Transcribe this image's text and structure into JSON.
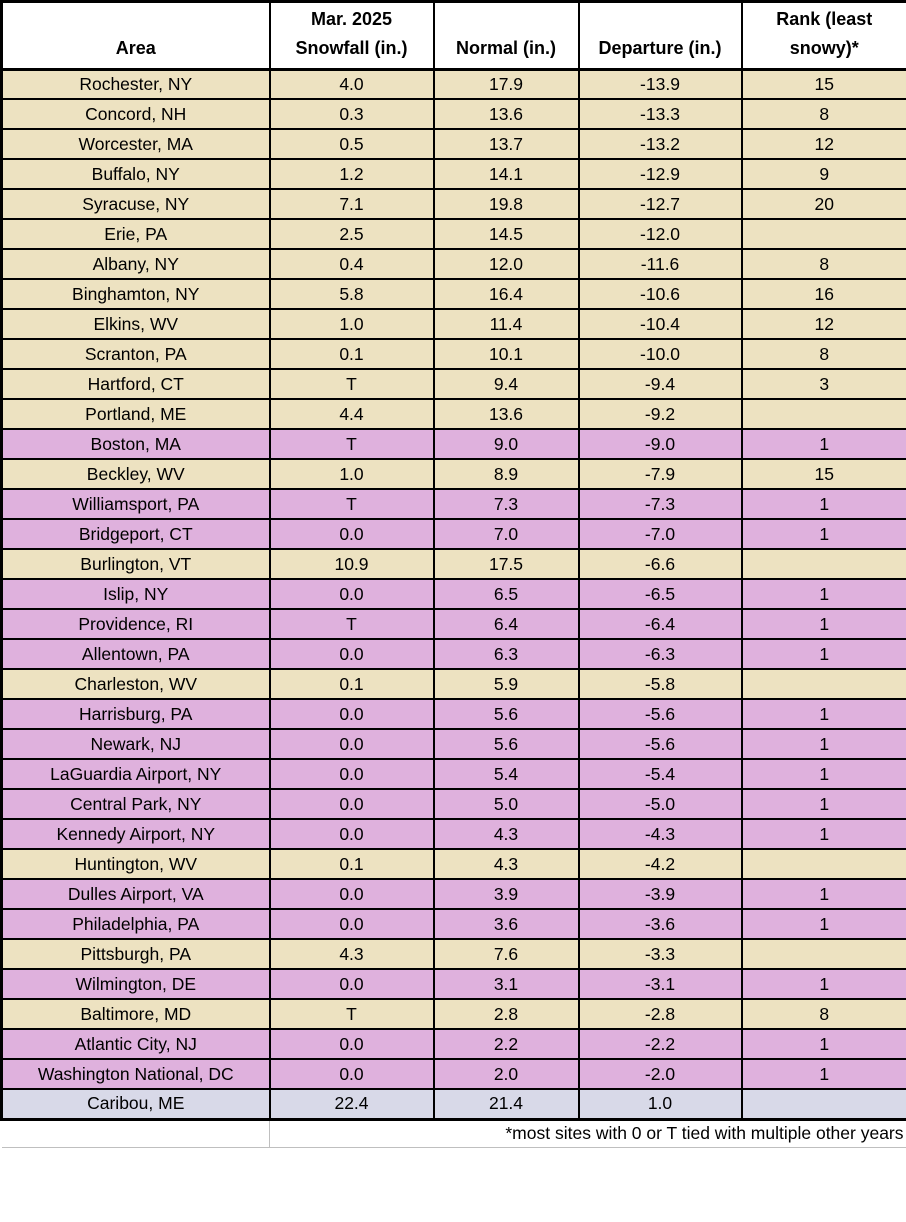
{
  "chart_data": {
    "type": "table",
    "title": "March 2025 snowfall vs. normal by area",
    "columns": [
      "Area",
      "Mar. 2025 Snowfall (in.)",
      "Normal (in.)",
      "Departure (in.)",
      "Rank (least snowy)*"
    ],
    "rows": [
      {
        "area": "Rochester, NY",
        "snowfall": "4.0",
        "normal": "17.9",
        "departure": "-13.9",
        "rank": "15",
        "tone": "tan"
      },
      {
        "area": "Concord, NH",
        "snowfall": "0.3",
        "normal": "13.6",
        "departure": "-13.3",
        "rank": "8",
        "tone": "tan"
      },
      {
        "area": "Worcester, MA",
        "snowfall": "0.5",
        "normal": "13.7",
        "departure": "-13.2",
        "rank": "12",
        "tone": "tan"
      },
      {
        "area": "Buffalo, NY",
        "snowfall": "1.2",
        "normal": "14.1",
        "departure": "-12.9",
        "rank": "9",
        "tone": "tan"
      },
      {
        "area": "Syracuse, NY",
        "snowfall": "7.1",
        "normal": "19.8",
        "departure": "-12.7",
        "rank": "20",
        "tone": "tan"
      },
      {
        "area": "Erie, PA",
        "snowfall": "2.5",
        "normal": "14.5",
        "departure": "-12.0",
        "rank": "",
        "tone": "tan"
      },
      {
        "area": "Albany, NY",
        "snowfall": "0.4",
        "normal": "12.0",
        "departure": "-11.6",
        "rank": "8",
        "tone": "tan"
      },
      {
        "area": "Binghamton, NY",
        "snowfall": "5.8",
        "normal": "16.4",
        "departure": "-10.6",
        "rank": "16",
        "tone": "tan"
      },
      {
        "area": "Elkins, WV",
        "snowfall": "1.0",
        "normal": "11.4",
        "departure": "-10.4",
        "rank": "12",
        "tone": "tan"
      },
      {
        "area": "Scranton, PA",
        "snowfall": "0.1",
        "normal": "10.1",
        "departure": "-10.0",
        "rank": "8",
        "tone": "tan"
      },
      {
        "area": "Hartford, CT",
        "snowfall": "T",
        "normal": "9.4",
        "departure": "-9.4",
        "rank": "3",
        "tone": "tan"
      },
      {
        "area": "Portland, ME",
        "snowfall": "4.4",
        "normal": "13.6",
        "departure": "-9.2",
        "rank": "",
        "tone": "tan"
      },
      {
        "area": "Boston, MA",
        "snowfall": "T",
        "normal": "9.0",
        "departure": "-9.0",
        "rank": "1",
        "tone": "pink"
      },
      {
        "area": "Beckley, WV",
        "snowfall": "1.0",
        "normal": "8.9",
        "departure": "-7.9",
        "rank": "15",
        "tone": "tan"
      },
      {
        "area": "Williamsport, PA",
        "snowfall": "T",
        "normal": "7.3",
        "departure": "-7.3",
        "rank": "1",
        "tone": "pink"
      },
      {
        "area": "Bridgeport, CT",
        "snowfall": "0.0",
        "normal": "7.0",
        "departure": "-7.0",
        "rank": "1",
        "tone": "pink"
      },
      {
        "area": "Burlington, VT",
        "snowfall": "10.9",
        "normal": "17.5",
        "departure": "-6.6",
        "rank": "",
        "tone": "tan"
      },
      {
        "area": "Islip, NY",
        "snowfall": "0.0",
        "normal": "6.5",
        "departure": "-6.5",
        "rank": "1",
        "tone": "pink"
      },
      {
        "area": "Providence, RI",
        "snowfall": "T",
        "normal": "6.4",
        "departure": "-6.4",
        "rank": "1",
        "tone": "pink"
      },
      {
        "area": "Allentown, PA",
        "snowfall": "0.0",
        "normal": "6.3",
        "departure": "-6.3",
        "rank": "1",
        "tone": "pink"
      },
      {
        "area": "Charleston, WV",
        "snowfall": "0.1",
        "normal": "5.9",
        "departure": "-5.8",
        "rank": "",
        "tone": "tan"
      },
      {
        "area": "Harrisburg, PA",
        "snowfall": "0.0",
        "normal": "5.6",
        "departure": "-5.6",
        "rank": "1",
        "tone": "pink"
      },
      {
        "area": "Newark, NJ",
        "snowfall": "0.0",
        "normal": "5.6",
        "departure": "-5.6",
        "rank": "1",
        "tone": "pink"
      },
      {
        "area": "LaGuardia Airport, NY",
        "snowfall": "0.0",
        "normal": "5.4",
        "departure": "-5.4",
        "rank": "1",
        "tone": "pink"
      },
      {
        "area": "Central Park, NY",
        "snowfall": "0.0",
        "normal": "5.0",
        "departure": "-5.0",
        "rank": "1",
        "tone": "pink"
      },
      {
        "area": "Kennedy Airport, NY",
        "snowfall": "0.0",
        "normal": "4.3",
        "departure": "-4.3",
        "rank": "1",
        "tone": "pink"
      },
      {
        "area": "Huntington, WV",
        "snowfall": "0.1",
        "normal": "4.3",
        "departure": "-4.2",
        "rank": "",
        "tone": "tan"
      },
      {
        "area": "Dulles Airport, VA",
        "snowfall": "0.0",
        "normal": "3.9",
        "departure": "-3.9",
        "rank": "1",
        "tone": "pink"
      },
      {
        "area": "Philadelphia, PA",
        "snowfall": "0.0",
        "normal": "3.6",
        "departure": "-3.6",
        "rank": "1",
        "tone": "pink"
      },
      {
        "area": "Pittsburgh, PA",
        "snowfall": "4.3",
        "normal": "7.6",
        "departure": "-3.3",
        "rank": "",
        "tone": "tan"
      },
      {
        "area": "Wilmington, DE",
        "snowfall": "0.0",
        "normal": "3.1",
        "departure": "-3.1",
        "rank": "1",
        "tone": "pink"
      },
      {
        "area": "Baltimore, MD",
        "snowfall": "T",
        "normal": "2.8",
        "departure": "-2.8",
        "rank": "8",
        "tone": "tan"
      },
      {
        "area": "Atlantic City, NJ",
        "snowfall": "0.0",
        "normal": "2.2",
        "departure": "-2.2",
        "rank": "1",
        "tone": "pink"
      },
      {
        "area": "Washington National, DC",
        "snowfall": "0.0",
        "normal": "2.0",
        "departure": "-2.0",
        "rank": "1",
        "tone": "pink"
      },
      {
        "area": "Caribou, ME",
        "snowfall": "22.4",
        "normal": "21.4",
        "departure": "1.0",
        "rank": "",
        "tone": "lavender"
      }
    ],
    "footnote": "*most sites with 0 or T tied with multiple other years"
  },
  "header": {
    "area": "Area",
    "snowfall_line1": "Mar. 2025",
    "snowfall_line2": "Snowfall (in.)",
    "normal": "Normal (in.)",
    "departure": "Departure (in.)",
    "rank_line1": "Rank (least",
    "rank_line2": "snowy)*"
  },
  "colors": {
    "tan": "#EDE2C1",
    "pink": "#DFB1DD",
    "lavender": "#D8D9E8",
    "border": "#000000",
    "footer-grid": "#BFBFBF"
  }
}
